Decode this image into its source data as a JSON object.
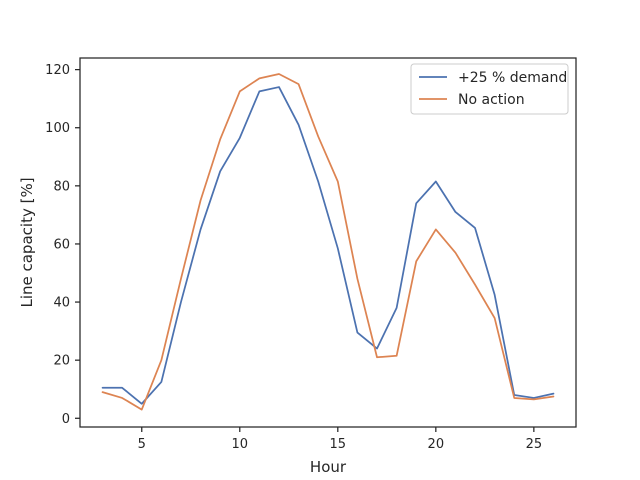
{
  "chart_data": {
    "type": "line",
    "title": "",
    "xlabel": "Hour",
    "ylabel": "Line capacity [%]",
    "xlim": [
      1.85,
      27.15
    ],
    "ylim": [
      -3,
      124
    ],
    "xticks": [
      5,
      10,
      15,
      20,
      25
    ],
    "yticks": [
      0,
      20,
      40,
      60,
      80,
      100,
      120
    ],
    "grid": false,
    "legend_position": "top-right",
    "x": [
      3,
      4,
      5,
      6,
      7,
      8,
      9,
      10,
      11,
      12,
      13,
      14,
      15,
      16,
      17,
      18,
      19,
      20,
      21,
      22,
      23,
      24,
      25,
      26
    ],
    "series": [
      {
        "name": "+25 % demand",
        "color": "#4c72b0",
        "values": [
          10.5,
          10.5,
          5.0,
          12.5,
          40.0,
          65.0,
          85.0,
          96.5,
          112.5,
          114.0,
          101.0,
          81.5,
          58.5,
          29.5,
          24.0,
          38.0,
          74.0,
          81.5,
          71.0,
          65.5,
          42.5,
          8.0,
          7.0,
          8.5
        ]
      },
      {
        "name": "No action",
        "color": "#dd8452",
        "values": [
          9.0,
          7.0,
          3.0,
          20.0,
          48.0,
          75.0,
          96.0,
          112.5,
          117.0,
          118.5,
          115.0,
          97.0,
          81.5,
          48.0,
          21.0,
          21.5,
          54.0,
          65.0,
          57.0,
          46.0,
          34.5,
          7.0,
          6.5,
          7.5
        ]
      }
    ]
  }
}
